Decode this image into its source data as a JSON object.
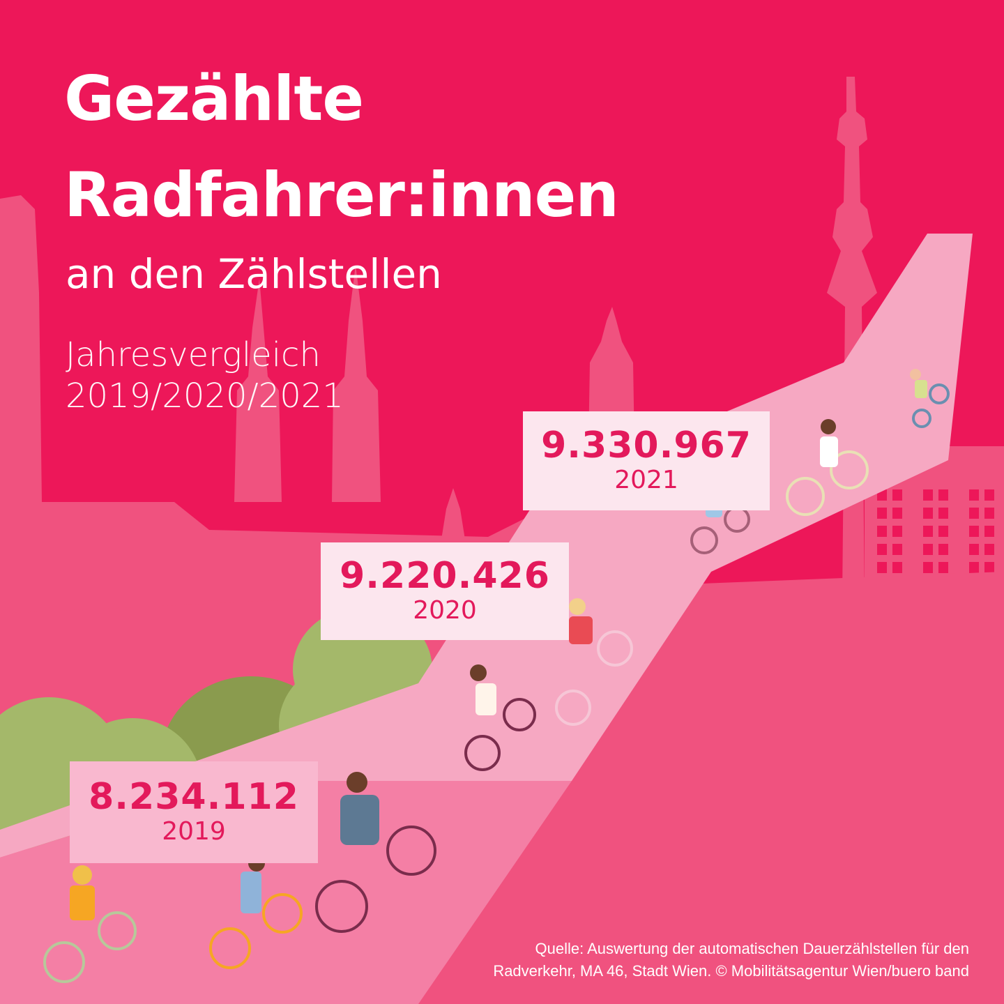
{
  "colors": {
    "background": "#ed1759",
    "building": "#f0527f",
    "path": "#f6a8c2",
    "box_light": "#fce6ee",
    "box_pink": "#f9b8cf",
    "number": "#e3195b",
    "text": "#ffffff"
  },
  "title": {
    "line1": "Gezählte",
    "line2": "Radfahrer:innen",
    "subtitle": "an den Zählstellen"
  },
  "comparison": {
    "line1": "Jahresvergleich",
    "line2": "2019/2020/2021"
  },
  "chart_data": {
    "type": "bar",
    "categories": [
      "2019",
      "2020",
      "2021"
    ],
    "values": [
      8234112,
      9220426,
      9330967
    ],
    "value_labels": [
      "8.234.112",
      "9.220.426",
      "9.330.967"
    ],
    "title": "Gezählte Radfahrer:innen an den Zählstellen",
    "xlabel": "",
    "ylabel": "",
    "legend": "none",
    "grid": false
  },
  "source": {
    "line1": "Quelle: Auswertung der automatischen Dauerzählstellen für den",
    "line2": "Radverkehr, MA 46, Stadt Wien. © Mobilitätsagentur Wien/buero band"
  }
}
